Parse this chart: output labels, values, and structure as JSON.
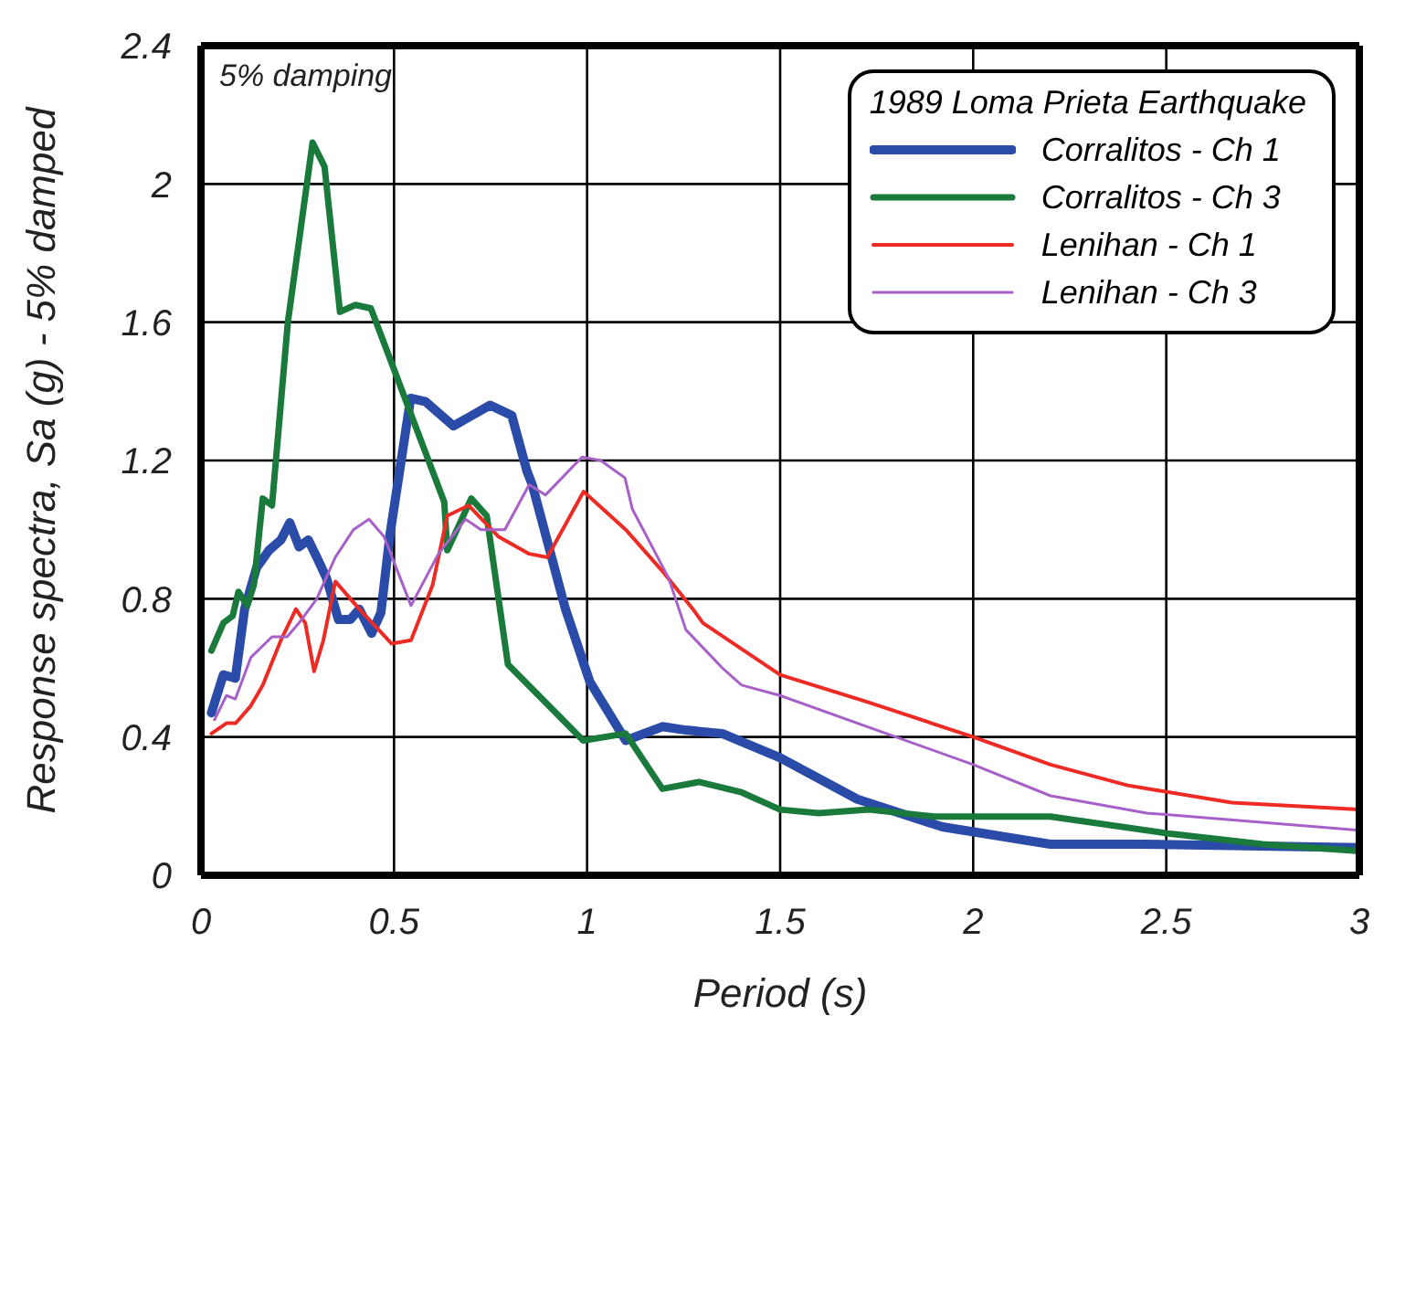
{
  "chart_data": {
    "type": "line",
    "xlabel": "Period (s)",
    "ylabel": "Response spectra, Sa (g) - 5% damped",
    "legend_title": "1989 Loma Prieta Earthquake",
    "annotations": [
      "5% damping"
    ],
    "xlim": [
      0,
      3
    ],
    "ylim": [
      0,
      2.4
    ],
    "xticks": [
      0,
      0.5,
      1,
      1.5,
      2,
      2.5,
      3
    ],
    "yticks": [
      0,
      0.4,
      0.8,
      1.2,
      1.6,
      2,
      2.4
    ],
    "grid": true,
    "legend": "top right",
    "marker": "none",
    "line_style": "solid",
    "series": [
      {
        "name": "Corralitos - Ch 1",
        "color": "#2b4ba8",
        "x": [
          0.027,
          0.058,
          0.089,
          0.113,
          0.144,
          0.176,
          0.207,
          0.23,
          0.254,
          0.278,
          0.3,
          0.325,
          0.356,
          0.387,
          0.41,
          0.442,
          0.466,
          0.49,
          0.543,
          0.582,
          0.654,
          0.749,
          0.805,
          0.844,
          0.858,
          0.944,
          1.007,
          1.1,
          1.195,
          1.256,
          1.35,
          1.5,
          1.7,
          1.92,
          2.2,
          2.44,
          3.0
        ],
        "values": [
          0.47,
          0.58,
          0.57,
          0.77,
          0.89,
          0.94,
          0.97,
          1.02,
          0.95,
          0.97,
          0.92,
          0.86,
          0.74,
          0.74,
          0.77,
          0.7,
          0.76,
          0.99,
          1.38,
          1.37,
          1.3,
          1.36,
          1.33,
          1.17,
          1.13,
          0.77,
          0.56,
          0.39,
          0.43,
          0.42,
          0.41,
          0.34,
          0.22,
          0.14,
          0.09,
          0.09,
          0.08
        ]
      },
      {
        "name": "Corralitos - Ch 3",
        "color": "#1a7a3c",
        "x": [
          0.027,
          0.058,
          0.082,
          0.097,
          0.12,
          0.137,
          0.16,
          0.184,
          0.225,
          0.289,
          0.32,
          0.36,
          0.4,
          0.44,
          0.63,
          0.638,
          0.7,
          0.74,
          0.795,
          0.99,
          1.1,
          1.195,
          1.29,
          1.4,
          1.5,
          1.6,
          1.73,
          1.9,
          2.2,
          2.51,
          2.75,
          3.0
        ],
        "values": [
          0.65,
          0.73,
          0.75,
          0.82,
          0.78,
          0.84,
          1.09,
          1.07,
          1.6,
          2.12,
          2.05,
          1.63,
          1.65,
          1.64,
          1.08,
          0.94,
          1.09,
          1.04,
          0.61,
          0.39,
          0.41,
          0.25,
          0.27,
          0.24,
          0.19,
          0.18,
          0.19,
          0.17,
          0.17,
          0.12,
          0.09,
          0.07
        ]
      },
      {
        "name": "Lenihan - Ch 1",
        "color": "#ee2a24",
        "x": [
          0.027,
          0.066,
          0.09,
          0.129,
          0.16,
          0.207,
          0.246,
          0.27,
          0.293,
          0.317,
          0.348,
          0.41,
          0.494,
          0.544,
          0.6,
          0.638,
          0.693,
          0.77,
          0.85,
          0.897,
          0.991,
          1.1,
          1.195,
          1.274,
          1.3,
          1.5,
          1.73,
          2.0,
          2.2,
          2.4,
          2.67,
          3.0
        ],
        "values": [
          0.41,
          0.44,
          0.44,
          0.49,
          0.55,
          0.68,
          0.77,
          0.73,
          0.59,
          0.68,
          0.85,
          0.77,
          0.67,
          0.68,
          0.84,
          1.04,
          1.07,
          0.98,
          0.93,
          0.92,
          1.11,
          1.0,
          0.88,
          0.77,
          0.73,
          0.58,
          0.5,
          0.4,
          0.32,
          0.26,
          0.21,
          0.19
        ]
      },
      {
        "name": "Lenihan - Ch 3",
        "color": "#a660c8",
        "x": [
          0.035,
          0.066,
          0.089,
          0.129,
          0.184,
          0.223,
          0.254,
          0.3,
          0.348,
          0.395,
          0.435,
          0.474,
          0.544,
          0.615,
          0.685,
          0.725,
          0.787,
          0.85,
          0.892,
          0.987,
          1.035,
          1.098,
          1.117,
          1.211,
          1.256,
          1.35,
          1.4,
          1.5,
          1.775,
          2.0,
          2.2,
          2.45,
          3.0
        ],
        "values": [
          0.45,
          0.52,
          0.51,
          0.63,
          0.69,
          0.69,
          0.73,
          0.8,
          0.92,
          1.0,
          1.03,
          0.98,
          0.78,
          0.93,
          1.03,
          1.0,
          1.0,
          1.13,
          1.1,
          1.21,
          1.2,
          1.15,
          1.06,
          0.86,
          0.71,
          0.6,
          0.55,
          0.52,
          0.41,
          0.32,
          0.23,
          0.18,
          0.13
        ]
      }
    ]
  }
}
